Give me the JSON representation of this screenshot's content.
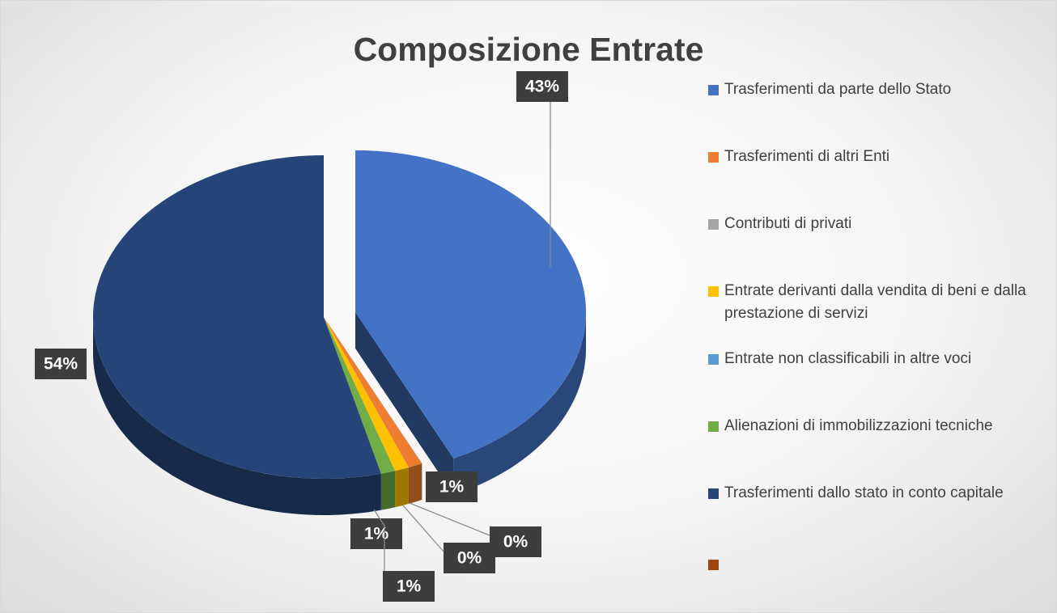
{
  "chart_data": {
    "type": "pie",
    "title": "Composizione Entrate",
    "categories": [
      "Trasferimenti da parte dello Stato",
      "Trasferimenti di altri Enti",
      "Contributi di privati",
      "Entrate derivanti dalla vendita di beni e dalla prestazione di servizi",
      "Entrate non classificabili in altre voci",
      "Alienazioni di immobilizzazioni tecniche",
      "Trasferimenti dallo stato in conto capitale",
      null
    ],
    "values": [
      43,
      1,
      0,
      1,
      0,
      1,
      54,
      0
    ],
    "value_labels": [
      "43%",
      "1%",
      "0%",
      "1%",
      "0%",
      "1%",
      "54%",
      null
    ],
    "colors": [
      "#4472c4",
      "#ed7d31",
      "#a5a5a5",
      "#ffc000",
      "#5b9bd5",
      "#70ad47",
      "#264478",
      "#9e480e"
    ],
    "legend": "right"
  }
}
